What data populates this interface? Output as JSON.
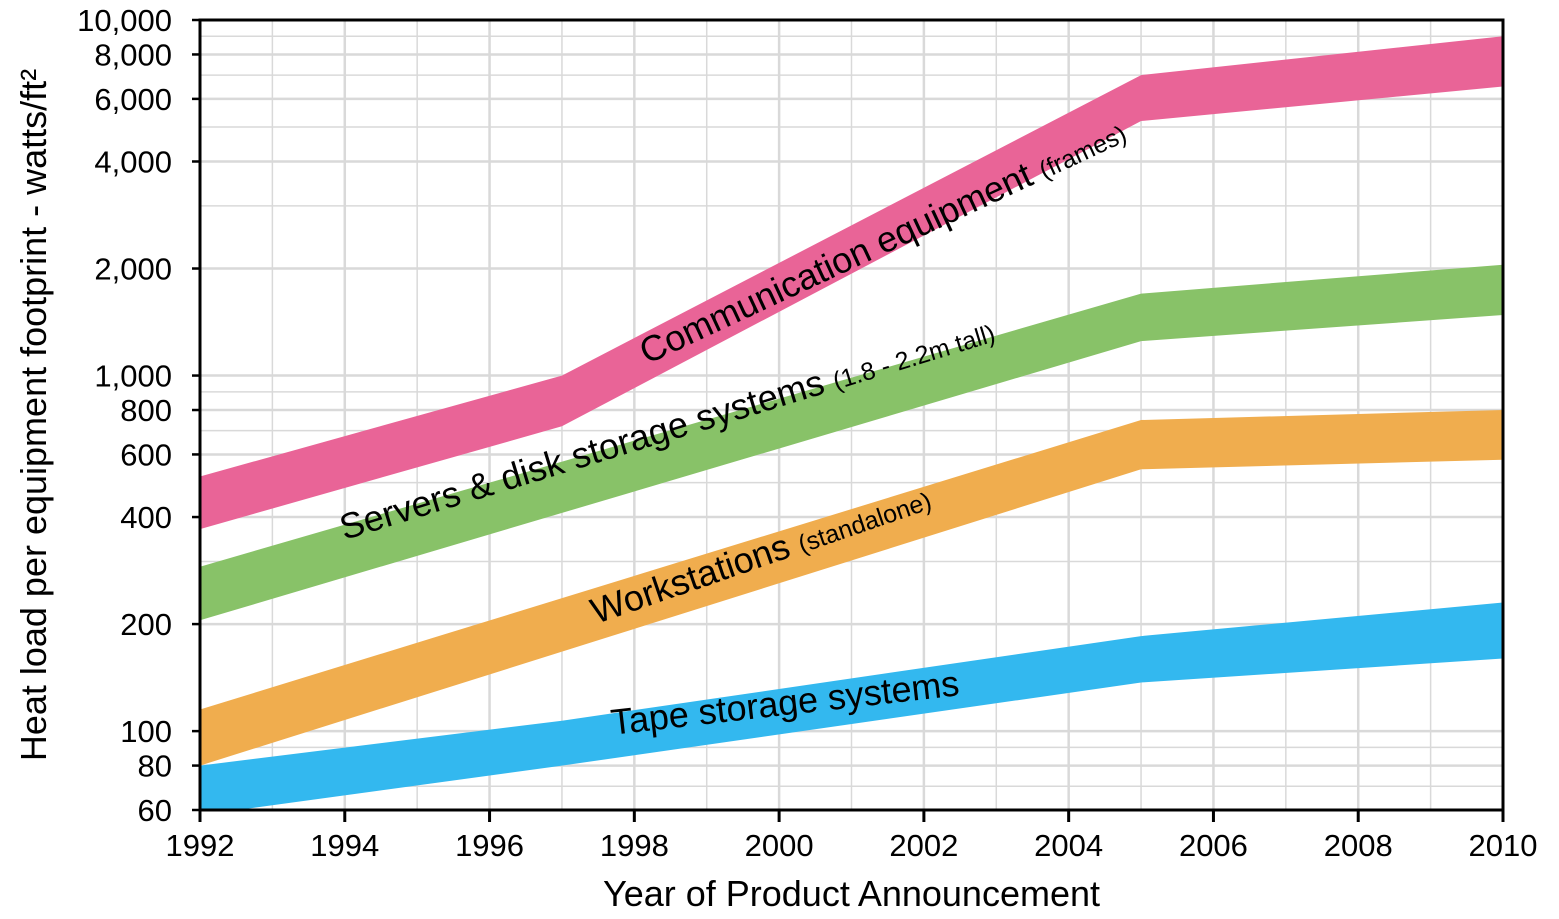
{
  "chart_data": {
    "type": "area",
    "xlabel": "Year of Product Announcement",
    "ylabel": "Heat load per equipment footprint - watts/ft²",
    "yscale": "log",
    "xlim": [
      1992,
      2010
    ],
    "ylim": [
      60,
      10000
    ],
    "grid": true,
    "legend": "none",
    "x_ticks": [
      "1992",
      "1994",
      "1996",
      "1998",
      "2000",
      "2002",
      "2004",
      "2006",
      "2008",
      "2010"
    ],
    "y_ticks": [
      {
        "value": 60,
        "label": "60"
      },
      {
        "value": 80,
        "label": "80"
      },
      {
        "value": 100,
        "label": "100"
      },
      {
        "value": 200,
        "label": "200"
      },
      {
        "value": 400,
        "label": "400"
      },
      {
        "value": 600,
        "label": "600"
      },
      {
        "value": 800,
        "label": "800"
      },
      {
        "value": 1000,
        "label": "1,000"
      },
      {
        "value": 2000,
        "label": "2,000"
      },
      {
        "value": 4000,
        "label": "4,000"
      },
      {
        "value": 6000,
        "label": "6,000"
      },
      {
        "value": 8000,
        "label": "8,000"
      },
      {
        "value": 10000,
        "label": "10,000"
      }
    ],
    "series": [
      {
        "name": "Tape storage systems",
        "label_main": "Tape storage systems",
        "label_sub": "",
        "color": "#33b8ef",
        "x": [
          1992,
          1997,
          2005,
          2010
        ],
        "upper": [
          80,
          107,
          185,
          230
        ],
        "lower": [
          58,
          80,
          137,
          160
        ],
        "label_x": 2000.1,
        "label_y": 120,
        "label_angle": -6.5
      },
      {
        "name": "Workstations (standalone)",
        "label_main": "Workstations",
        "label_sub": "(standalone)",
        "color": "#f0ad4e",
        "x": [
          1992,
          2005,
          2010
        ],
        "upper": [
          115,
          750,
          800
        ],
        "lower": [
          80,
          545,
          580
        ],
        "label_x": 1999.8,
        "label_y": 315,
        "label_angle": -19
      },
      {
        "name": "Servers & disk storage systems (1.8 - 2.2m tall)",
        "label_main": "Servers & disk storage systems",
        "label_sub": "(1.8 - 2.2m tall)",
        "color": "#88c268",
        "x": [
          1992,
          2005,
          2010
        ],
        "upper": [
          290,
          1700,
          2050
        ],
        "lower": [
          205,
          1250,
          1480
        ],
        "label_x": 1998.5,
        "label_y": 710,
        "label_angle": -17
      },
      {
        "name": "Communication equipment (frames)",
        "label_main": "Communication equipment",
        "label_sub": "(frames)",
        "color": "#e96497",
        "x": [
          1992,
          1997,
          2005,
          2010
        ],
        "upper": [
          520,
          1000,
          7000,
          9000
        ],
        "lower": [
          370,
          720,
          5200,
          6500
        ],
        "label_x": 2001.5,
        "label_y": 2400,
        "label_angle": -25
      }
    ]
  }
}
